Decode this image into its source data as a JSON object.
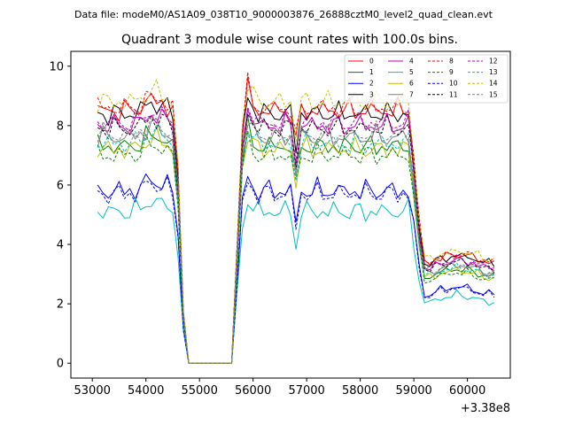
{
  "header": {
    "data_file": "Data file: modeM0/AS1A09_038T10_9000003876_26888cztM0_level2_quad_clean.evt"
  },
  "chart_data": {
    "type": "line",
    "title": "Quadrant 3 module wise count rates with 100.0s bins.",
    "xlabel": "",
    "ylabel": "",
    "x_offset_label": "+3.38e8",
    "xlim": [
      52600,
      60800
    ],
    "ylim": [
      -0.5,
      10.5
    ],
    "x_ticks": [
      53000,
      54000,
      55000,
      56000,
      57000,
      58000,
      59000,
      60000
    ],
    "x_tick_labels": [
      "53000",
      "54000",
      "55000",
      "56000",
      "57000",
      "58000",
      "59000",
      "60000"
    ],
    "y_ticks": [
      0,
      2,
      4,
      6,
      8,
      10
    ],
    "y_tick_labels": [
      "0",
      "2",
      "4",
      "6",
      "8",
      "10"
    ],
    "legend_position": "top-right",
    "x_start": 53100,
    "x_step": 100,
    "profile": [
      [
        0,
        0
      ],
      [
        14,
        0
      ],
      [
        15,
        -0.25
      ],
      [
        16,
        -0.8
      ],
      [
        17,
        -1.0
      ],
      [
        25,
        -1.0
      ],
      [
        26,
        -0.55
      ],
      [
        27,
        -0.08
      ],
      [
        28,
        0.08
      ],
      [
        29,
        0.02
      ],
      [
        30,
        0
      ],
      [
        58,
        0
      ],
      [
        59,
        -0.2
      ],
      [
        60,
        -0.45
      ],
      [
        61,
        -0.6
      ],
      [
        62,
        -0.6
      ]
    ],
    "series": [
      {
        "name": "0",
        "base": 8.5,
        "color": "#ff0000",
        "dash": "",
        "phase": 0.3
      },
      {
        "name": "1",
        "base": 7.3,
        "color": "#008000",
        "dash": "",
        "phase": 1.1
      },
      {
        "name": "2",
        "base": 5.8,
        "color": "#0000ff",
        "dash": "",
        "phase": 2.0
      },
      {
        "name": "3",
        "base": 8.4,
        "color": "#000000",
        "dash": "",
        "phase": 2.7
      },
      {
        "name": "4",
        "base": 8.0,
        "color": "#bf00bf",
        "dash": "",
        "phase": 3.5
      },
      {
        "name": "5",
        "base": 5.1,
        "color": "#00bfbf",
        "dash": "",
        "phase": 4.2
      },
      {
        "name": "6",
        "base": 7.2,
        "color": "#bfbf00",
        "dash": "",
        "phase": 5.0
      },
      {
        "name": "7",
        "base": 7.6,
        "color": "#808080",
        "dash": "",
        "phase": 5.8
      },
      {
        "name": "8",
        "base": 8.6,
        "color": "#ff0000",
        "dash": "3,2",
        "phase": 0.7
      },
      {
        "name": "9",
        "base": 7.0,
        "color": "#008000",
        "dash": "3,2",
        "phase": 1.5
      },
      {
        "name": "10",
        "base": 5.7,
        "color": "#0000ff",
        "dash": "3,2",
        "phase": 2.3
      },
      {
        "name": "11",
        "base": 7.9,
        "color": "#000000",
        "dash": "3,2",
        "phase": 3.1
      },
      {
        "name": "12",
        "base": 8.1,
        "color": "#bf00bf",
        "dash": "3,2",
        "phase": 3.9
      },
      {
        "name": "13",
        "base": 7.4,
        "color": "#00bfbf",
        "dash": "3,2",
        "phase": 4.6
      },
      {
        "name": "14",
        "base": 8.8,
        "color": "#bfbf00",
        "dash": "3,2",
        "phase": 5.4
      },
      {
        "name": "15",
        "base": 7.7,
        "color": "#808080",
        "dash": "3,2",
        "phase": 6.1
      }
    ]
  }
}
